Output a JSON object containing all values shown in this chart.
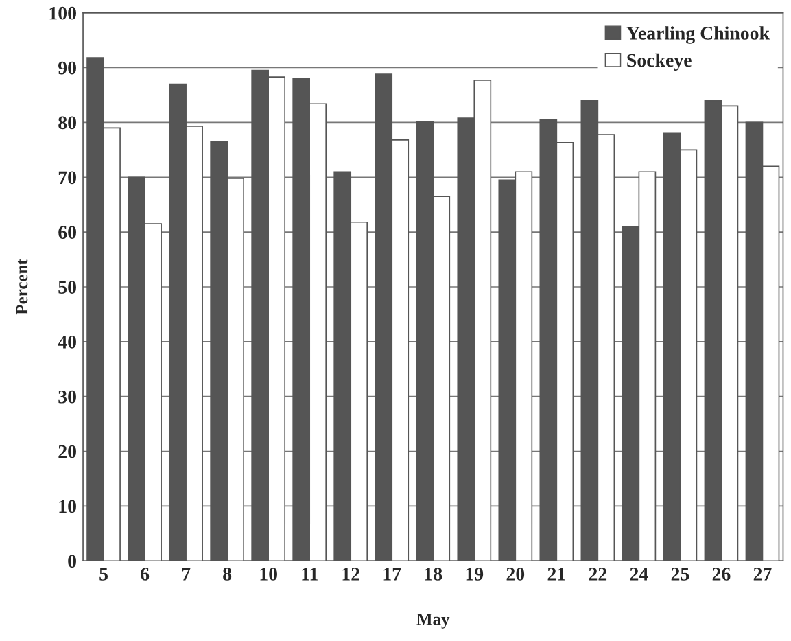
{
  "chart_data": {
    "type": "bar",
    "xlabel": "May",
    "ylabel": "Percent",
    "categories": [
      "5",
      "6",
      "7",
      "8",
      "10",
      "11",
      "12",
      "17",
      "18",
      "19",
      "20",
      "21",
      "22",
      "24",
      "25",
      "26",
      "27"
    ],
    "series": [
      {
        "name": "Yearling Chinook",
        "color": "#555555",
        "values": [
          91.8,
          70,
          87,
          76.5,
          89.5,
          88,
          71,
          88.8,
          80.2,
          80.8,
          69.5,
          80.5,
          84,
          61,
          78,
          84,
          80
        ]
      },
      {
        "name": "Sockeye",
        "color": "#ffffff",
        "values": [
          79,
          61.5,
          79.3,
          69.8,
          88.3,
          83.4,
          61.8,
          76.8,
          66.5,
          87.7,
          71,
          76.3,
          77.8,
          71,
          75,
          83,
          72
        ]
      }
    ],
    "ylim": [
      0,
      100
    ],
    "yticks": [
      0,
      10,
      20,
      30,
      40,
      50,
      60,
      70,
      80,
      90,
      100
    ],
    "grid": "y",
    "legend": "top right"
  }
}
